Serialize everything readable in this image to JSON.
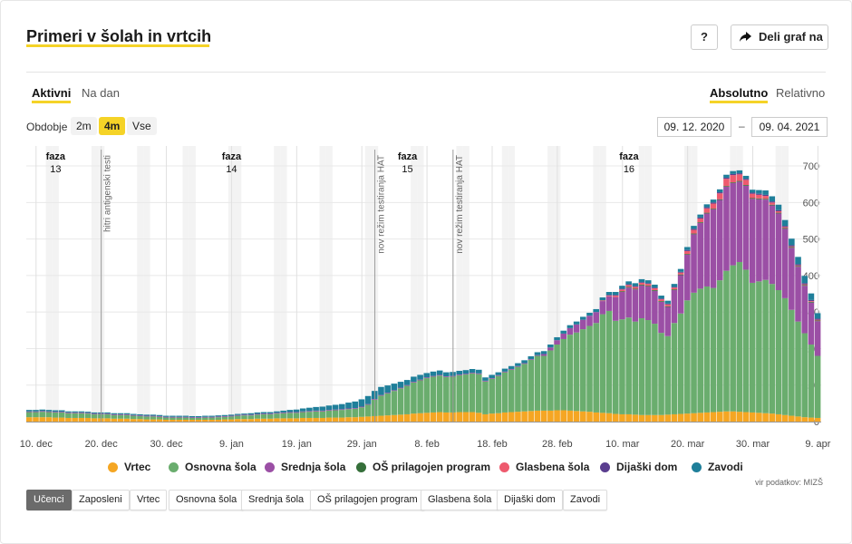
{
  "header": {
    "title": "Primeri v šolah in vrtcih",
    "help_label": "?",
    "share_label": "Deli graf na"
  },
  "tabs_left": [
    {
      "label": "Aktivni",
      "active": true
    },
    {
      "label": "Na dan",
      "active": false
    }
  ],
  "tabs_right": [
    {
      "label": "Absolutno",
      "active": true
    },
    {
      "label": "Relativno",
      "active": false
    }
  ],
  "period": {
    "label": "Obdobje",
    "options": [
      {
        "label": "2m"
      },
      {
        "label": "4m",
        "active": true
      },
      {
        "label": "Vse"
      }
    ],
    "date_from": "09. 12. 2020",
    "date_separator": "–",
    "date_to": "09. 04. 2021"
  },
  "source_text": "vir podatkov: MIZŠ",
  "category_buttons": [
    {
      "label": "Učenci",
      "active": true
    },
    {
      "label": "Zaposleni"
    },
    {
      "label": "Vrtec"
    },
    {
      "label": "Osnovna šola"
    },
    {
      "label": "Srednja šola"
    },
    {
      "label": "OŠ prilagojen program"
    },
    {
      "label": "Glasbena šola"
    },
    {
      "label": "Dijaški dom"
    },
    {
      "label": "Zavodi"
    }
  ],
  "chart_data": {
    "type": "bar",
    "stacked": true,
    "title": "",
    "xlabel": "",
    "ylabel": "",
    "ylim": [
      0,
      720
    ],
    "yticks": [
      0,
      100,
      200,
      300,
      400,
      500,
      600,
      700
    ],
    "start_date": "2020-12-09",
    "x_tick_labels": [
      {
        "day": 1,
        "label": "10. dec"
      },
      {
        "day": 11,
        "label": "20. dec"
      },
      {
        "day": 21,
        "label": "30. dec"
      },
      {
        "day": 31,
        "label": "9. jan"
      },
      {
        "day": 41,
        "label": "19. jan"
      },
      {
        "day": 51,
        "label": "29. jan"
      },
      {
        "day": 61,
        "label": "8. feb"
      },
      {
        "day": 71,
        "label": "18. feb"
      },
      {
        "day": 81,
        "label": "28. feb"
      },
      {
        "day": 91,
        "label": "10. mar"
      },
      {
        "day": 101,
        "label": "20. mar"
      },
      {
        "day": 111,
        "label": "30. mar"
      },
      {
        "day": 121,
        "label": "9. apr"
      }
    ],
    "phases": [
      {
        "day": 4,
        "label": "faza",
        "number": "13"
      },
      {
        "day": 31,
        "label": "faza",
        "number": "14"
      },
      {
        "day": 58,
        "label": "faza",
        "number": "15"
      },
      {
        "day": 92,
        "label": "faza",
        "number": "16"
      }
    ],
    "annotations": [
      {
        "day": 11,
        "text": "hitri antigenski testi"
      },
      {
        "day": 53,
        "text": "nov režim testiranja HAT"
      },
      {
        "day": 65,
        "text": "nov režim testiranja HAT"
      }
    ],
    "series": [
      {
        "name": "Vrtec",
        "color": "#f5a623",
        "values": [
          12,
          12,
          12,
          12,
          11,
          11,
          10,
          10,
          10,
          10,
          9,
          9,
          9,
          8,
          8,
          8,
          7,
          7,
          6,
          6,
          6,
          5,
          5,
          5,
          5,
          5,
          5,
          5,
          5,
          5,
          6,
          6,
          7,
          7,
          7,
          8,
          8,
          8,
          9,
          9,
          9,
          9,
          10,
          10,
          10,
          10,
          11,
          11,
          11,
          12,
          12,
          13,
          14,
          15,
          16,
          17,
          18,
          19,
          20,
          22,
          23,
          24,
          25,
          26,
          25,
          25,
          26,
          26,
          26,
          24,
          20,
          22,
          23,
          25,
          26,
          27,
          28,
          29,
          30,
          30,
          30,
          31,
          31,
          30,
          29,
          28,
          27,
          25,
          24,
          23,
          21,
          20,
          20,
          19,
          18,
          18,
          18,
          18,
          19,
          20,
          21,
          22,
          23,
          24,
          25,
          26,
          27,
          28,
          28,
          27,
          26,
          25,
          24,
          23,
          22,
          20,
          18,
          16,
          14,
          12,
          11,
          10
        ]
      },
      {
        "name": "Osnovna šola",
        "color": "#6aad6e",
        "values": [
          14,
          14,
          15,
          14,
          14,
          14,
          13,
          13,
          13,
          12,
          11,
          11,
          11,
          10,
          10,
          10,
          9,
          8,
          8,
          8,
          7,
          6,
          6,
          6,
          6,
          5,
          5,
          6,
          6,
          7,
          7,
          8,
          9,
          10,
          10,
          11,
          12,
          12,
          13,
          14,
          15,
          15,
          16,
          17,
          18,
          18,
          19,
          20,
          21,
          22,
          23,
          26,
          32,
          45,
          55,
          60,
          66,
          72,
          78,
          85,
          90,
          95,
          98,
          100,
          97,
          98,
          101,
          103,
          106,
          106,
          90,
          95,
          102,
          110,
          116,
          123,
          130,
          140,
          150,
          150,
          165,
          180,
          195,
          208,
          215,
          225,
          235,
          245,
          270,
          280,
          255,
          260,
          265,
          255,
          265,
          260,
          250,
          225,
          215,
          250,
          275,
          310,
          330,
          340,
          345,
          340,
          360,
          385,
          400,
          410,
          390,
          355,
          360,
          365,
          355,
          340,
          320,
          290,
          260,
          230,
          200,
          170
        ]
      },
      {
        "name": "Srednja šola",
        "color": "#9b4fa5",
        "values": [
          2,
          2,
          2,
          2,
          2,
          2,
          2,
          2,
          2,
          2,
          2,
          2,
          2,
          2,
          2,
          2,
          2,
          2,
          2,
          2,
          2,
          2,
          2,
          2,
          2,
          2,
          2,
          2,
          2,
          2,
          2,
          2,
          2,
          2,
          2,
          2,
          2,
          2,
          2,
          2,
          2,
          2,
          2,
          2,
          2,
          2,
          2,
          2,
          2,
          2,
          2,
          2,
          2,
          2,
          2,
          2,
          2,
          2,
          2,
          2,
          2,
          2,
          2,
          2,
          2,
          2,
          2,
          2,
          2,
          2,
          2,
          2,
          2,
          2,
          2,
          2,
          2,
          2,
          2,
          5,
          8,
          12,
          15,
          18,
          22,
          26,
          28,
          30,
          36,
          40,
          65,
          75,
          82,
          88,
          90,
          92,
          90,
          85,
          80,
          90,
          105,
          125,
          160,
          180,
          200,
          215,
          220,
          230,
          225,
          220,
          230,
          230,
          225,
          220,
          215,
          210,
          190,
          170,
          150,
          130,
          115,
          95
        ]
      },
      {
        "name": "OŠ prilagojen program",
        "color": "#356f3a",
        "values": [
          0,
          0,
          0,
          0,
          0,
          0,
          0,
          0,
          0,
          0,
          0,
          0,
          0,
          0,
          0,
          0,
          0,
          0,
          0,
          0,
          0,
          0,
          0,
          0,
          0,
          0,
          0,
          0,
          0,
          0,
          0,
          0,
          0,
          0,
          0,
          0,
          0,
          0,
          0,
          0,
          0,
          0,
          0,
          0,
          0,
          0,
          0,
          0,
          0,
          0,
          0,
          0,
          0,
          0,
          0,
          0,
          0,
          0,
          0,
          0,
          0,
          0,
          0,
          0,
          0,
          0,
          0,
          0,
          0,
          0,
          0,
          0,
          0,
          0,
          0,
          0,
          0,
          0,
          0,
          0,
          0,
          0,
          0,
          0,
          0,
          0,
          0,
          0,
          0,
          0,
          0,
          2,
          2,
          2,
          2,
          2,
          2,
          2,
          2,
          2,
          2,
          2,
          2,
          2,
          2,
          2,
          2,
          2,
          2,
          2,
          2,
          2,
          2,
          2,
          2,
          2,
          2,
          2,
          2,
          2,
          2,
          2
        ]
      },
      {
        "name": "Glasbena šola",
        "color": "#ee5a6e",
        "values": [
          0,
          0,
          0,
          0,
          0,
          0,
          0,
          0,
          0,
          0,
          0,
          0,
          0,
          0,
          0,
          0,
          0,
          0,
          0,
          0,
          0,
          0,
          0,
          0,
          0,
          0,
          0,
          0,
          0,
          0,
          0,
          0,
          0,
          0,
          0,
          0,
          0,
          0,
          0,
          0,
          0,
          0,
          0,
          0,
          0,
          0,
          0,
          0,
          0,
          0,
          0,
          0,
          0,
          0,
          0,
          0,
          0,
          0,
          0,
          0,
          0,
          0,
          0,
          0,
          0,
          0,
          0,
          0,
          0,
          0,
          0,
          0,
          0,
          0,
          0,
          0,
          0,
          0,
          0,
          0,
          0,
          0,
          0,
          0,
          0,
          0,
          0,
          0,
          2,
          2,
          4,
          5,
          5,
          5,
          5,
          5,
          5,
          5,
          5,
          5,
          5,
          8,
          10,
          10,
          12,
          14,
          16,
          20,
          20,
          18,
          14,
          12,
          10,
          8,
          6,
          4,
          3,
          2,
          2,
          2,
          2,
          2
        ]
      },
      {
        "name": "Dijaški dom",
        "color": "#5a3e8f",
        "values": [
          0,
          0,
          0,
          0,
          0,
          0,
          0,
          0,
          0,
          0,
          0,
          0,
          0,
          0,
          0,
          0,
          0,
          0,
          0,
          0,
          0,
          0,
          0,
          0,
          0,
          0,
          0,
          0,
          0,
          0,
          0,
          0,
          0,
          0,
          0,
          0,
          0,
          0,
          0,
          0,
          0,
          0,
          0,
          0,
          0,
          0,
          0,
          0,
          0,
          0,
          0,
          0,
          0,
          0,
          0,
          0,
          0,
          0,
          0,
          0,
          0,
          0,
          0,
          0,
          0,
          0,
          0,
          0,
          0,
          0,
          0,
          0,
          0,
          0,
          0,
          0,
          0,
          0,
          0,
          0,
          0,
          0,
          0,
          0,
          0,
          0,
          0,
          0,
          0,
          2,
          2,
          2,
          2,
          2,
          2,
          2,
          2,
          2,
          2,
          2,
          2,
          3,
          3,
          3,
          3,
          3,
          3,
          3,
          3,
          3,
          3,
          3,
          3,
          3,
          3,
          3,
          3,
          3,
          3,
          3,
          3,
          3
        ]
      },
      {
        "name": "Zavodi",
        "color": "#1f7f9a",
        "values": [
          4,
          4,
          4,
          4,
          4,
          4,
          3,
          3,
          3,
          3,
          3,
          3,
          3,
          3,
          3,
          3,
          3,
          3,
          3,
          3,
          3,
          3,
          3,
          3,
          3,
          3,
          3,
          3,
          3,
          3,
          3,
          3,
          3,
          3,
          4,
          4,
          4,
          4,
          4,
          5,
          6,
          7,
          8,
          9,
          10,
          11,
          12,
          13,
          14,
          16,
          18,
          20,
          22,
          22,
          22,
          20,
          18,
          16,
          14,
          14,
          13,
          12,
          12,
          12,
          11,
          11,
          10,
          10,
          10,
          10,
          9,
          9,
          8,
          8,
          8,
          8,
          8,
          8,
          8,
          8,
          8,
          8,
          8,
          8,
          8,
          8,
          8,
          8,
          8,
          8,
          8,
          8,
          8,
          8,
          8,
          8,
          8,
          8,
          8,
          8,
          8,
          8,
          8,
          8,
          8,
          8,
          8,
          8,
          8,
          8,
          8,
          8,
          10,
          12,
          14,
          15,
          16,
          18,
          20,
          20,
          18,
          15
        ]
      }
    ]
  }
}
